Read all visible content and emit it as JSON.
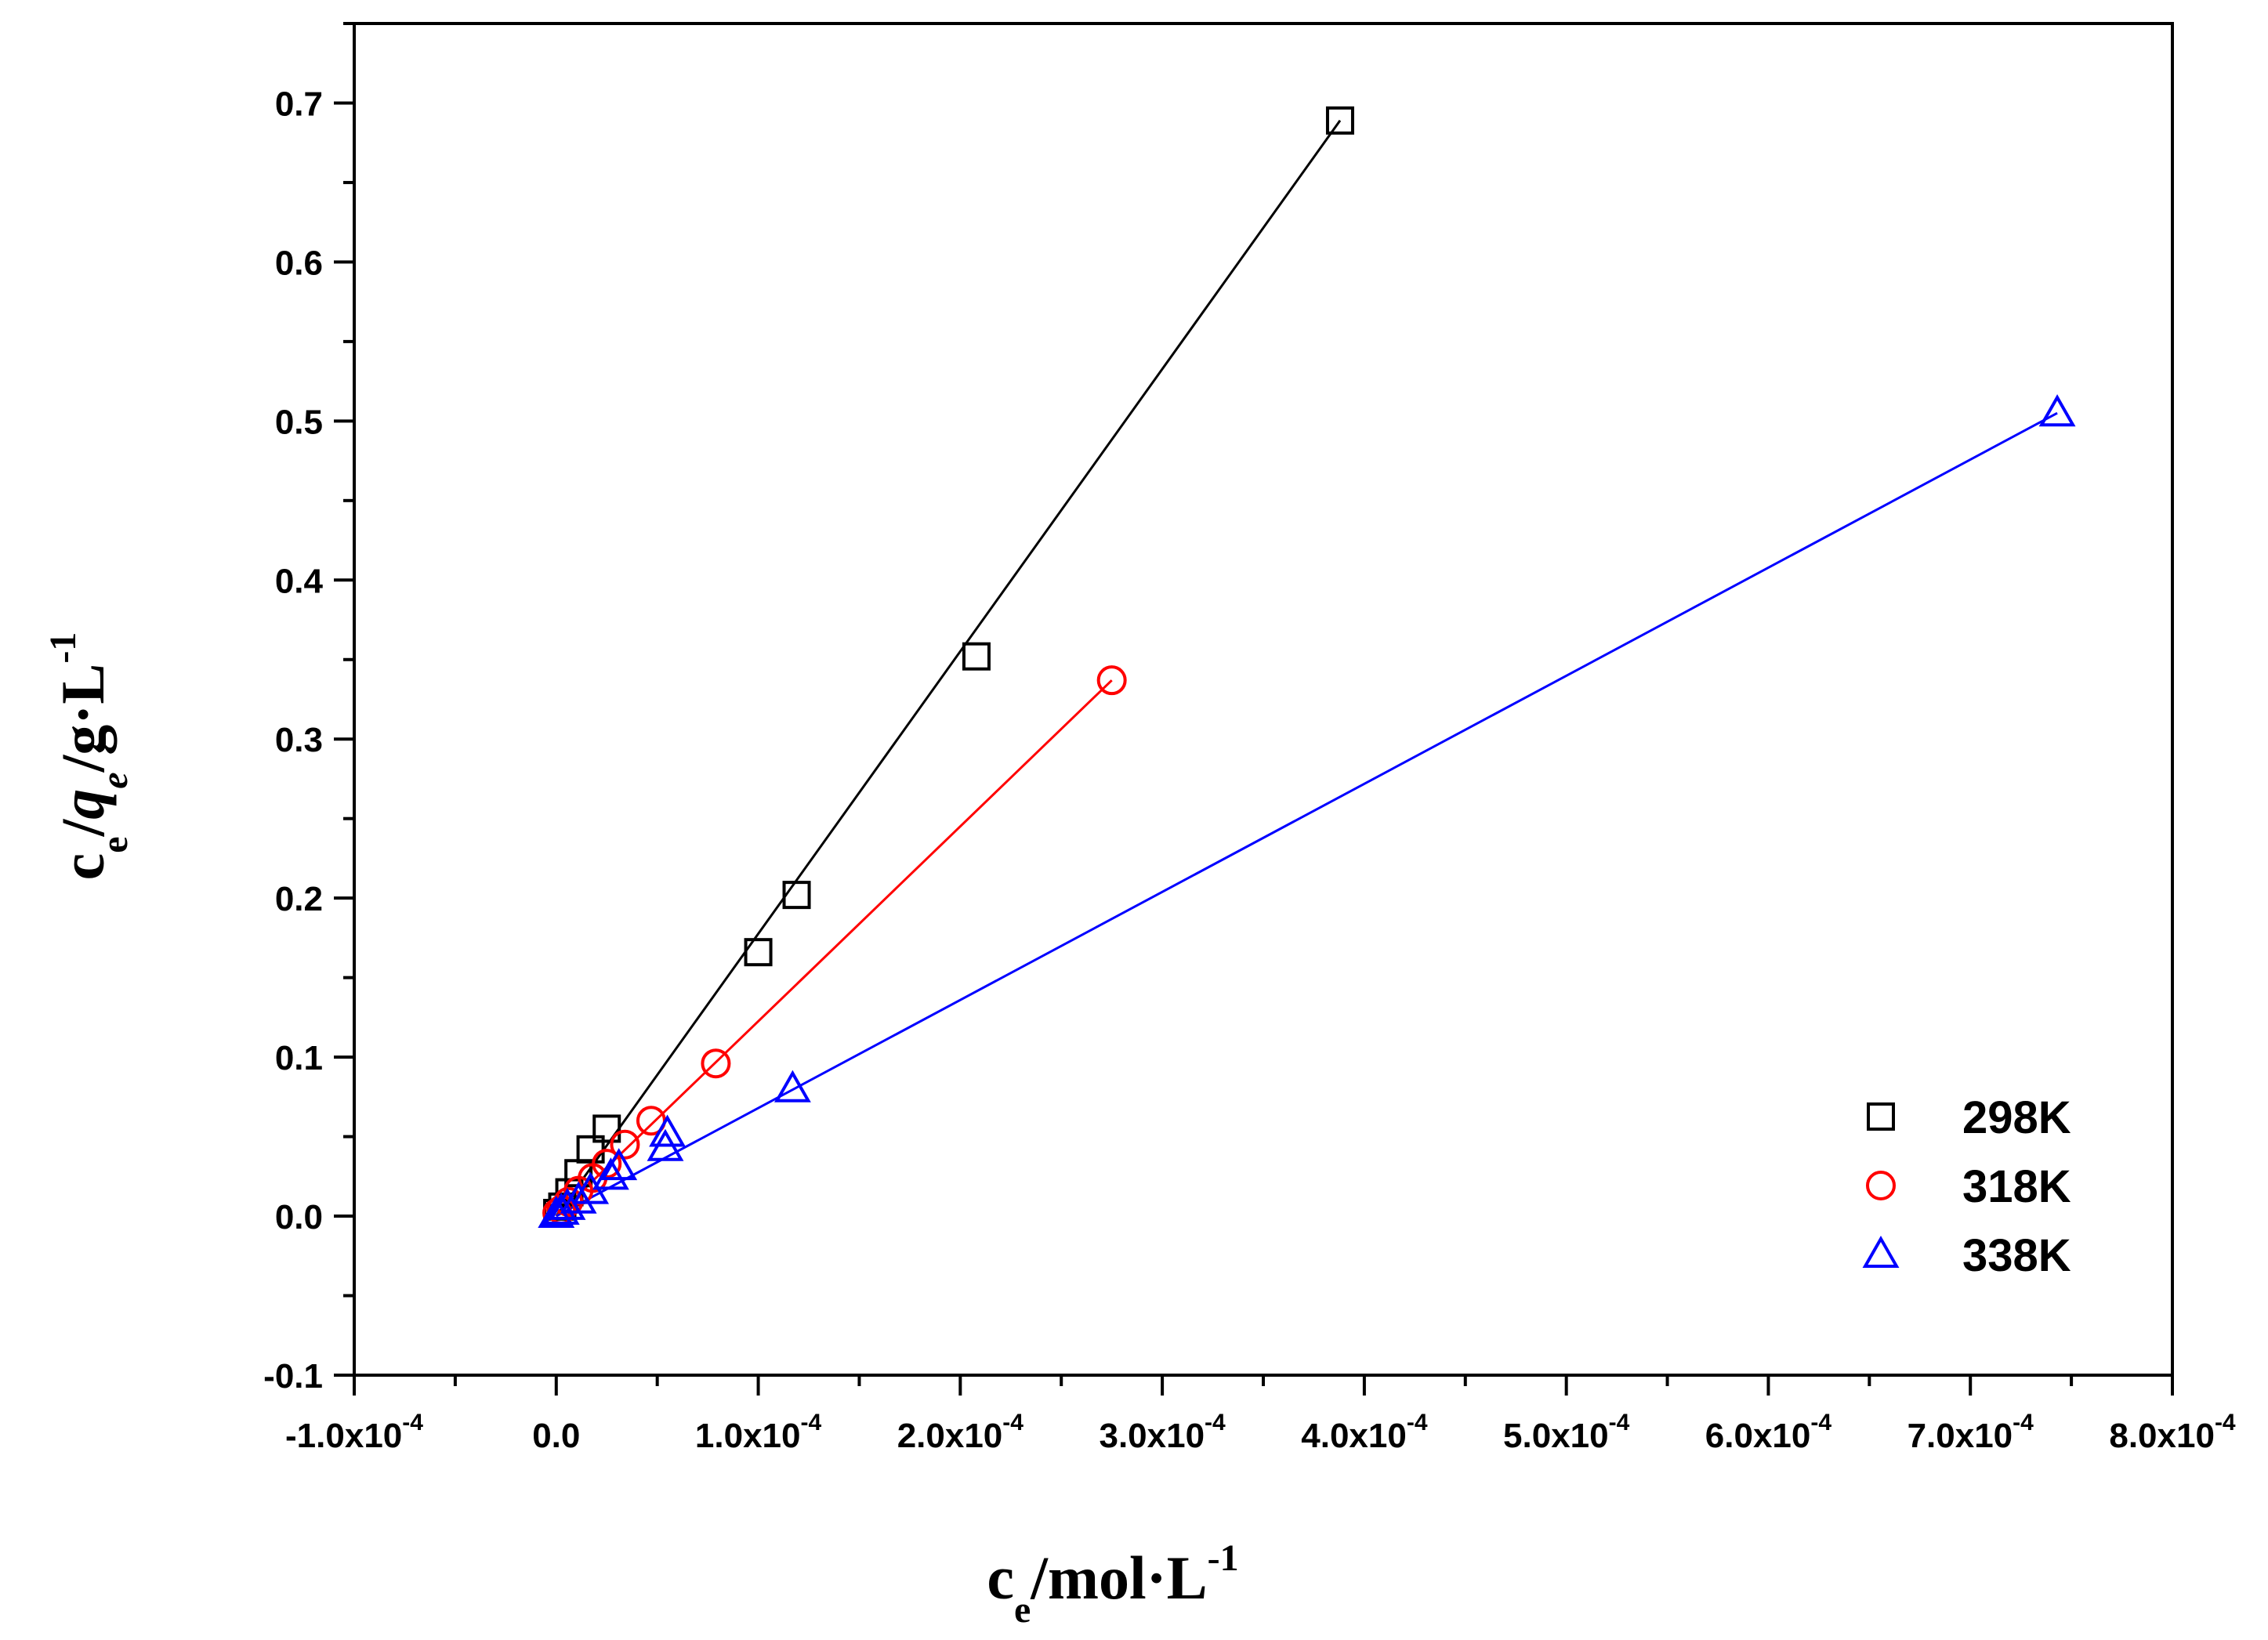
{
  "chart_data": {
    "type": "scatter",
    "title": "",
    "xlabel": {
      "base": "c",
      "sub": "e",
      "rest": "/mol·L",
      "sup": "-1"
    },
    "ylabel": {
      "base": "c",
      "sub": "e",
      "mid": "/",
      "qbase": "q",
      "qsub": "e",
      "rest": "/g·L",
      "sup": "-1"
    },
    "xlim": [
      -0.0001,
      0.0008
    ],
    "ylim": [
      -0.1,
      0.75
    ],
    "x_ticks": [
      {
        "value": -0.0001,
        "mantissa": "-1.0x10",
        "exp": "-4"
      },
      {
        "value": 0.0,
        "mantissa": "0.0",
        "exp": ""
      },
      {
        "value": 0.0001,
        "mantissa": "1.0x10",
        "exp": "-4"
      },
      {
        "value": 0.0002,
        "mantissa": "2.0x10",
        "exp": "-4"
      },
      {
        "value": 0.0003,
        "mantissa": "3.0x10",
        "exp": "-4"
      },
      {
        "value": 0.0004,
        "mantissa": "4.0x10",
        "exp": "-4"
      },
      {
        "value": 0.0005,
        "mantissa": "5.0x10",
        "exp": "-4"
      },
      {
        "value": 0.0006,
        "mantissa": "6.0x10",
        "exp": "-4"
      },
      {
        "value": 0.0007,
        "mantissa": "7.0x10",
        "exp": "-4"
      },
      {
        "value": 0.0008,
        "mantissa": "8.0x10",
        "exp": "-4"
      }
    ],
    "y_ticks": [
      {
        "value": -0.1,
        "label": "-0.1"
      },
      {
        "value": 0.0,
        "label": "0.0"
      },
      {
        "value": 0.1,
        "label": "0.1"
      },
      {
        "value": 0.2,
        "label": "0.2"
      },
      {
        "value": 0.3,
        "label": "0.3"
      },
      {
        "value": 0.4,
        "label": "0.4"
      },
      {
        "value": 0.5,
        "label": "0.5"
      },
      {
        "value": 0.6,
        "label": "0.6"
      },
      {
        "value": 0.7,
        "label": "0.7"
      }
    ],
    "legend_position": "bottom-right",
    "series": [
      {
        "name": "298K",
        "marker": "square",
        "color": "#000000",
        "x": [
          5e-07,
          3e-06,
          6.5e-06,
          1.1e-05,
          1.7e-05,
          2.5e-05,
          0.0001,
          0.000119,
          0.000208,
          0.000388
        ],
        "y": [
          0.002,
          0.006,
          0.015,
          0.027,
          0.042,
          0.055,
          0.166,
          0.202,
          0.352,
          0.689
        ],
        "fit": {
          "x": [
            0.0,
            0.000388
          ],
          "y": [
            0.0,
            0.689
          ]
        }
      },
      {
        "name": "318K",
        "marker": "circle",
        "color": "#ff0000",
        "x": [
          5e-07,
          2.5e-06,
          6e-06,
          1.1e-05,
          1.8e-05,
          2.5e-05,
          3.4e-05,
          4.7e-05,
          7.9e-05,
          0.000275
        ],
        "y": [
          0.002,
          0.004,
          0.009,
          0.016,
          0.024,
          0.033,
          0.045,
          0.06,
          0.096,
          0.337
        ],
        "fit": {
          "x": [
            0.0,
            0.000275
          ],
          "y": [
            0.0,
            0.337
          ]
        }
      },
      {
        "name": "338K",
        "marker": "triangle",
        "color": "#0000ff",
        "x": [
          0.0,
          2.5e-06,
          5.5e-06,
          1.1e-05,
          1.7e-05,
          2.7e-05,
          3.1e-05,
          5.4e-05,
          5.5e-05,
          0.000117,
          0.000743
        ],
        "y": [
          0.001,
          0.003,
          0.006,
          0.01,
          0.016,
          0.025,
          0.031,
          0.043,
          0.052,
          0.08,
          0.505
        ],
        "fit": {
          "x": [
            0.0,
            0.000743
          ],
          "y": [
            0.0,
            0.505
          ]
        }
      }
    ]
  }
}
